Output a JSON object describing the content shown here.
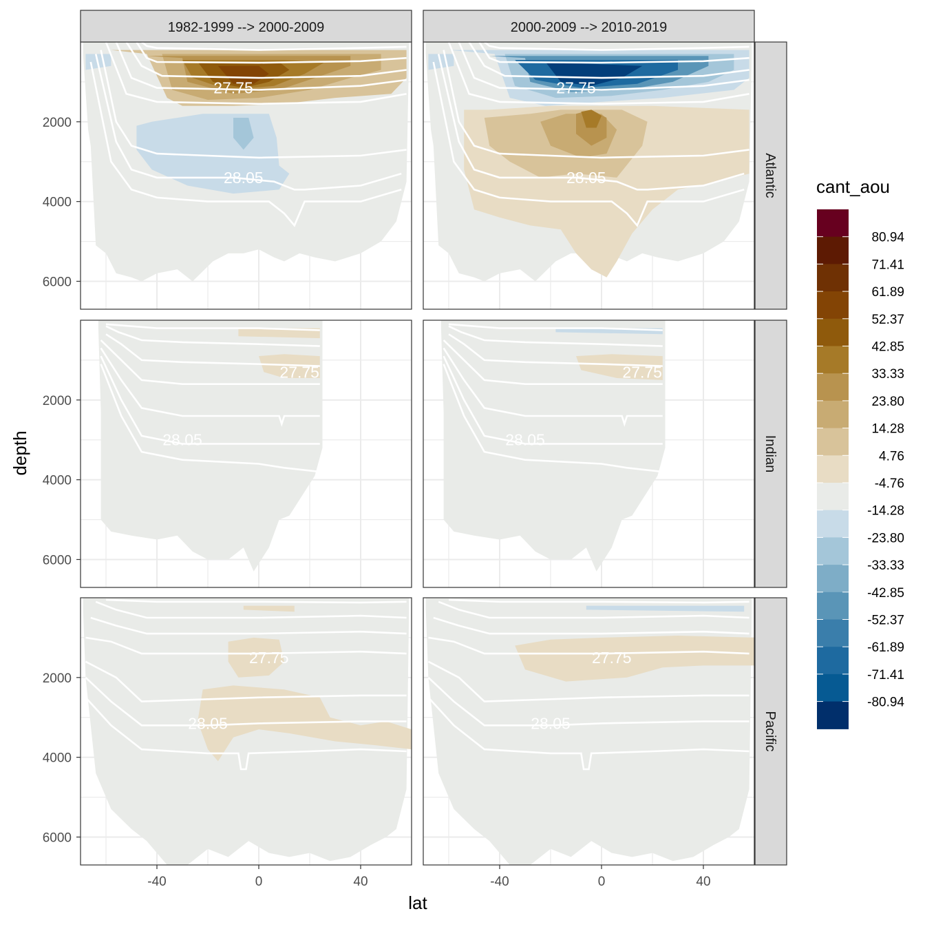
{
  "chart_data": {
    "type": "heatmap",
    "title": "",
    "xlabel": "lat",
    "ylabel": "depth",
    "xlim": [
      -70,
      60
    ],
    "ylim": [
      6700,
      0
    ],
    "x_ticks": [
      -40,
      0,
      40
    ],
    "x_tick_labels": [
      "-40",
      "0",
      "40"
    ],
    "y_ticks": [
      2000,
      4000,
      6000
    ],
    "y_tick_labels": [
      "2000",
      "4000",
      "6000"
    ],
    "columns": [
      "1982-1999 --> 2000-2009",
      "2000-2009 --> 2010-2019"
    ],
    "rows": [
      "Atlantic",
      "Indian",
      "Pacific"
    ],
    "fill_variable": "cant_aou",
    "legend": {
      "title": "cant_aou",
      "breaks": [
        "80.94",
        "71.41",
        "61.89",
        "52.37",
        "42.85",
        "33.33",
        "23.80",
        "14.28",
        "4.76",
        "-4.76",
        "-14.28",
        "-23.80",
        "-33.33",
        "-42.85",
        "-52.37",
        "-61.89",
        "-71.41",
        "-80.94"
      ],
      "colors": [
        "#67001f",
        "#5d1a03",
        "#6f3104",
        "#834405",
        "#8f5a0c",
        "#a67a28",
        "#b8934f",
        "#c8ab73",
        "#d8c39a",
        "#e8dcc4",
        "#e9ebe8",
        "#c8dbe8",
        "#a4c6d9",
        "#7eadc7",
        "#5a95b7",
        "#3a7eab",
        "#1e6aa0",
        "#065a93",
        "#033e7a",
        "#012f6b",
        "#001c5a"
      ]
    },
    "isopycnal_labels": [
      "27.75",
      "28.05"
    ],
    "panels": [
      {
        "basin": "Atlantic",
        "period": "1982-1999 --> 2000-2009",
        "mid_depth_anomaly": "positive (brown) max ~ 80.94 near 0 lat, 800-1300 m",
        "deep_anomaly": "negative (blue) ~ -14.28 to -23.80, 2000-3500 m"
      },
      {
        "basin": "Atlantic",
        "period": "2000-2009 --> 2010-2019",
        "mid_depth_anomaly": "negative (blue) min ~ -80.94 near 0 lat, 700-1300 m",
        "deep_anomaly": "positive (brown) ~ 14.28 to 42.85, 1800-5000 m"
      },
      {
        "basin": "Indian",
        "period": "1982-1999 --> 2000-2009",
        "mid_depth_anomaly": "weak positive ~ 4.76 to 14.28 near 10-25N, 1000-1500 m"
      },
      {
        "basin": "Indian",
        "period": "2000-2009 --> 2010-2019",
        "mid_depth_anomaly": "weak positive ~ 4.76 to 14.28 near 0-25N, 1000-1500 m"
      },
      {
        "basin": "Pacific",
        "period": "1982-1999 --> 2000-2009",
        "mid_depth_anomaly": "weak positive ~ 4.76 to 14.28, 1600-2000 m and 2300-3800 m"
      },
      {
        "basin": "Pacific",
        "period": "2000-2009 --> 2010-2019",
        "mid_depth_anomaly": "weak positive ~ 4.76 to 14.28, 1500-2200 m, -20 to 60 lat"
      }
    ]
  }
}
